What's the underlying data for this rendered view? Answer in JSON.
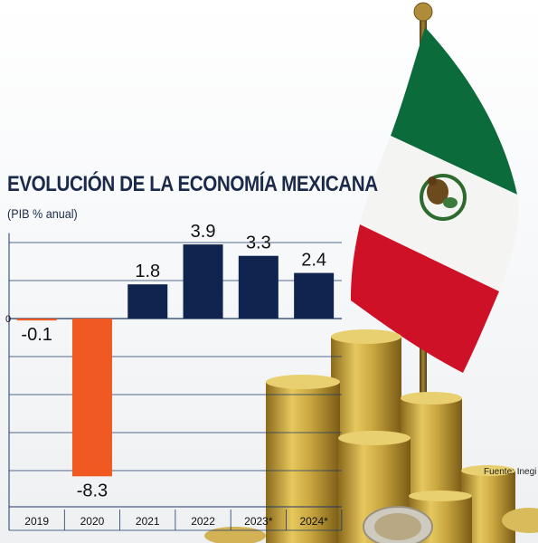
{
  "chart_data": {
    "type": "bar",
    "title": "EVOLUCIÓN DE LA ECONOMÍA MEXICANA",
    "subtitle": "(PIB % anual)",
    "categories": [
      "2019",
      "2020",
      "2021",
      "2022",
      "2023*",
      "2024*"
    ],
    "values": [
      -0.1,
      -8.3,
      1.8,
      3.9,
      3.3,
      2.4
    ],
    "value_labels": [
      "-0.1",
      "-8.3",
      "1.8",
      "3.9",
      "3.3",
      "2.4"
    ],
    "zero_label": "0",
    "ylim": [
      -9,
      4.5
    ],
    "grid": true,
    "colors": {
      "positive": "#0f2550",
      "negative": "#f05a22",
      "grid": "#1b3a6a",
      "text": "#111111"
    }
  },
  "source": "Fuente: Inegi",
  "illustration": {
    "flag_colors": [
      "#0b6b3a",
      "#ffffff",
      "#ce1126"
    ],
    "coin_color": "#c9a640",
    "icons": [
      "mexican-flag-icon",
      "coin-stacks-icon"
    ]
  }
}
